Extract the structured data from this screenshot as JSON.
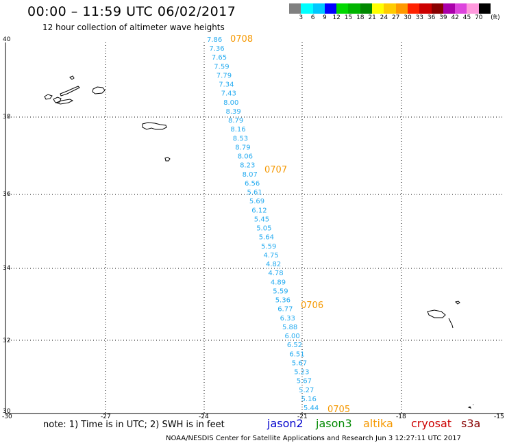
{
  "header": {
    "title": "00:00 – 11:59 UTC 06/02/2017",
    "subtitle": "12 hour collection of altimeter wave heights"
  },
  "legend": {
    "unit": "(ft)",
    "colors": [
      "#808080",
      "#00ffff",
      "#00c8ff",
      "#0000ff",
      "#00d800",
      "#00b400",
      "#008800",
      "#ffff00",
      "#ffcc00",
      "#ff9900",
      "#ff2200",
      "#cc0000",
      "#880000",
      "#aa00aa",
      "#dd44dd",
      "#ff99dd",
      "#000000"
    ],
    "labels": [
      "3",
      "6",
      "9",
      "12",
      "15",
      "18",
      "21",
      "24",
      "27",
      "30",
      "33",
      "36",
      "39",
      "42",
      "45",
      "70"
    ]
  },
  "axes": {
    "lat_labels": [
      "40",
      "38",
      "36",
      "34",
      "32",
      "30"
    ],
    "lon_labels": [
      "-30",
      "-27",
      "-24",
      "-21",
      "-18",
      "-15"
    ]
  },
  "swh_values": [
    "7.86",
    "7.36",
    "7.65",
    "7.59",
    "7.79",
    "7.34",
    "7.43",
    "8.00",
    "8.39",
    "8.79",
    "8.16",
    "8.53",
    "8.79",
    "8.06",
    "8.23",
    "8.07",
    "6.56",
    "5.61",
    "5.69",
    "6.12",
    "5.45",
    "5.05",
    "5.64",
    "5.59",
    "4.75",
    "4.82",
    "4.78",
    "4.89",
    "5.59",
    "5.36",
    "6.77",
    "6.33",
    "5.88",
    "6.00",
    "6.52",
    "6.51",
    "5.67",
    "5.23",
    "5.67",
    "5.27",
    "5.16",
    "5.44"
  ],
  "pass_times": [
    "0708",
    "0707",
    "0706",
    "0705"
  ],
  "note": "note: 1) Time is in UTC; 2) SWH is in feet",
  "satellites": [
    {
      "name": "jason2",
      "color": "#0000cc"
    },
    {
      "name": "jason3",
      "color": "#008800"
    },
    {
      "name": "altika",
      "color": "#f59800"
    },
    {
      "name": "cryosat",
      "color": "#cc0000"
    },
    {
      "name": "s3a",
      "color": "#880000"
    }
  ],
  "footer": "NOAA/NESDIS Center for Satellite Applications and Research    Jun  3 12:27:11 UTC 2017"
}
